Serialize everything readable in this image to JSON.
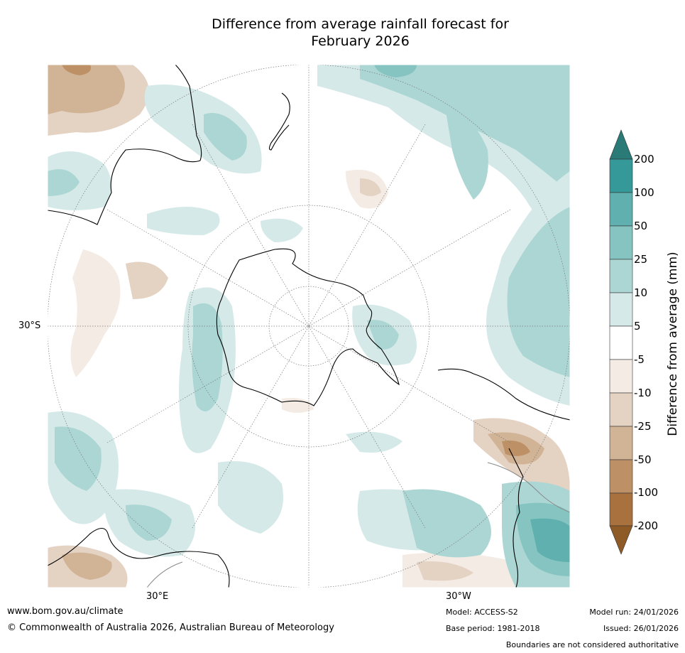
{
  "title_line1": "Difference from average rainfall forecast for",
  "title_line2": "February 2026",
  "map": {
    "lat_label": "30°S",
    "lon_labels": [
      "30°E",
      "30°W"
    ],
    "colors": {
      "pos200": "#2a7a78",
      "pos100": "#35999a",
      "pos50": "#5fb0ae",
      "pos25": "#85c4c1",
      "pos10": "#acd6d4",
      "pos5": "#d5eae8",
      "neutral": "#ffffff",
      "neg5": "#f3ebe4",
      "neg10": "#e4d2c3",
      "neg25": "#d1b396",
      "neg50": "#bd9066",
      "neg100": "#a8713d",
      "neg200": "#8e5a25"
    }
  },
  "colorbar": {
    "title": "Difference from average (mm)",
    "labels": [
      "200",
      "100",
      "50",
      "25",
      "10",
      "5",
      "-5",
      "-10",
      "-25",
      "-50",
      "-100",
      "-200"
    ]
  },
  "footer": {
    "website": "www.bom.gov.au/climate",
    "copyright": "© Commonwealth of Australia 2026, Australian Bureau of Meteorology",
    "model": "Model: ACCESS-S2",
    "base_period": "Base period: 1981-2018",
    "model_run": "Model run: 24/01/2026",
    "issued": "Issued: 26/01/2026",
    "disclaimer": "Boundaries are not considered authoritative"
  }
}
